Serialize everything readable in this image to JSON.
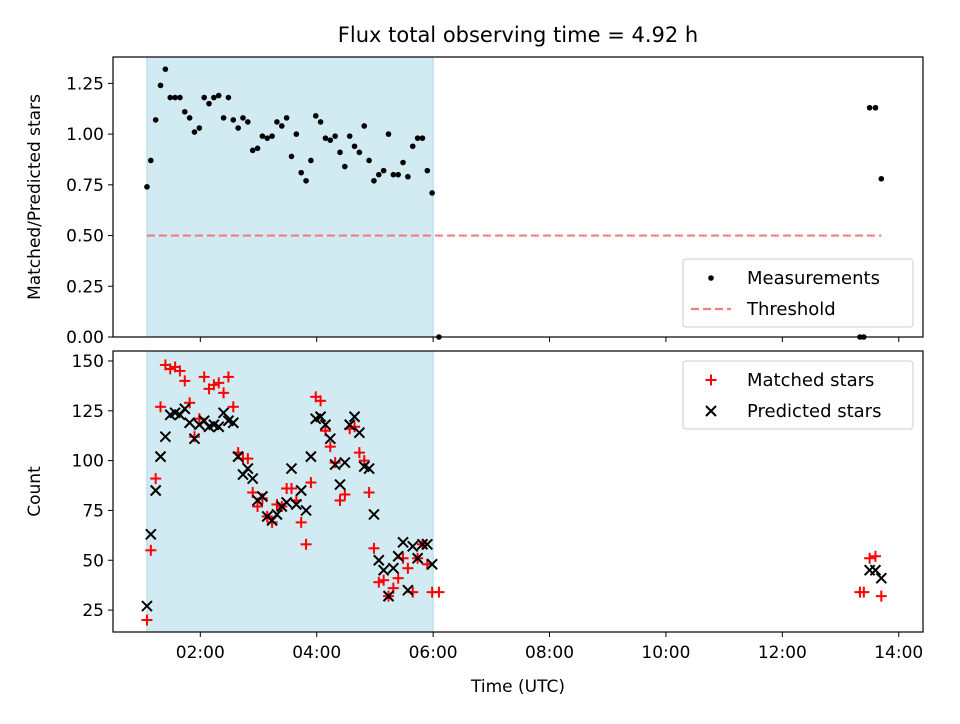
{
  "title": "Flux total observing time = 4.92 h",
  "chart_data": [
    {
      "type": "scatter",
      "ylabel": "Matched/Predicted stars",
      "xlim": [
        "00:30",
        "14:25"
      ],
      "ylim": [
        0,
        1.38
      ],
      "yticks": [
        "0.00",
        "0.25",
        "0.50",
        "0.75",
        "1.00",
        "1.25"
      ],
      "shaded_region": {
        "from": "01:05",
        "to": "06:00",
        "color": "#add8e6"
      },
      "grid": false,
      "legend_position": "lower-right",
      "legend": [
        "Measurements",
        "Threshold"
      ],
      "series": [
        {
          "name": "Measurements",
          "marker": "dot",
          "color": "#000000",
          "points": [
            [
              "01:05",
              0.74
            ],
            [
              "01:09",
              0.87
            ],
            [
              "01:14",
              1.07
            ],
            [
              "01:19",
              1.24
            ],
            [
              "01:24",
              1.32
            ],
            [
              "01:29",
              1.18
            ],
            [
              "01:34",
              1.18
            ],
            [
              "01:39",
              1.18
            ],
            [
              "01:44",
              1.11
            ],
            [
              "01:49",
              1.08
            ],
            [
              "01:54",
              1.01
            ],
            [
              "01:59",
              1.03
            ],
            [
              "02:04",
              1.18
            ],
            [
              "02:09",
              1.15
            ],
            [
              "02:14",
              1.18
            ],
            [
              "02:19",
              1.19
            ],
            [
              "02:24",
              1.08
            ],
            [
              "02:29",
              1.18
            ],
            [
              "02:34",
              1.07
            ],
            [
              "02:39",
              1.03
            ],
            [
              "02:44",
              1.08
            ],
            [
              "02:49",
              1.06
            ],
            [
              "02:54",
              0.92
            ],
            [
              "02:59",
              0.93
            ],
            [
              "03:04",
              0.99
            ],
            [
              "03:09",
              0.98
            ],
            [
              "03:14",
              0.99
            ],
            [
              "03:19",
              1.06
            ],
            [
              "03:24",
              1.04
            ],
            [
              "03:29",
              1.08
            ],
            [
              "03:34",
              0.89
            ],
            [
              "03:39",
              1.0
            ],
            [
              "03:44",
              0.81
            ],
            [
              "03:49",
              0.77
            ],
            [
              "03:54",
              0.87
            ],
            [
              "03:59",
              1.09
            ],
            [
              "04:04",
              1.06
            ],
            [
              "04:09",
              0.98
            ],
            [
              "04:14",
              0.97
            ],
            [
              "04:19",
              0.99
            ],
            [
              "04:24",
              0.91
            ],
            [
              "04:29",
              0.84
            ],
            [
              "04:34",
              0.99
            ],
            [
              "04:39",
              0.94
            ],
            [
              "04:44",
              0.91
            ],
            [
              "04:49",
              1.04
            ],
            [
              "04:54",
              0.87
            ],
            [
              "04:59",
              0.77
            ],
            [
              "05:04",
              0.8
            ],
            [
              "05:09",
              0.82
            ],
            [
              "05:14",
              1.0
            ],
            [
              "05:19",
              0.8
            ],
            [
              "05:24",
              0.8
            ],
            [
              "05:29",
              0.86
            ],
            [
              "05:34",
              0.79
            ],
            [
              "05:39",
              0.94
            ],
            [
              "05:44",
              0.98
            ],
            [
              "05:49",
              0.98
            ],
            [
              "05:54",
              0.82
            ],
            [
              "05:59",
              0.71
            ],
            [
              "06:06",
              0.0
            ],
            [
              "13:20",
              0.0
            ],
            [
              "13:24",
              0.0
            ],
            [
              "13:30",
              1.13
            ],
            [
              "13:36",
              1.13
            ],
            [
              "13:42",
              0.78
            ]
          ]
        },
        {
          "name": "Threshold",
          "marker": "dashed-line",
          "color": "#f08080",
          "points": [
            [
              "01:05",
              0.5
            ],
            [
              "13:42",
              0.5
            ]
          ]
        }
      ]
    },
    {
      "type": "scatter",
      "xlabel": "Time (UTC)",
      "ylabel": "Count",
      "xlim": [
        "00:30",
        "14:25"
      ],
      "ylim": [
        14,
        155
      ],
      "xticks": [
        "02:00",
        "04:00",
        "06:00",
        "08:00",
        "10:00",
        "12:00",
        "14:00"
      ],
      "yticks": [
        "25",
        "50",
        "75",
        "100",
        "125",
        "150"
      ],
      "shaded_region": {
        "from": "01:05",
        "to": "06:00",
        "color": "#add8e6"
      },
      "grid": false,
      "legend_position": "top-right",
      "legend": [
        "Matched stars",
        "Predicted stars"
      ],
      "series": [
        {
          "name": "Matched stars",
          "marker": "plus",
          "color": "#ff0000",
          "points": [
            [
              "01:05",
              20
            ],
            [
              "01:09",
              55
            ],
            [
              "01:14",
              91
            ],
            [
              "01:19",
              127
            ],
            [
              "01:24",
              148
            ],
            [
              "01:29",
              146
            ],
            [
              "01:34",
              147
            ],
            [
              "01:39",
              145
            ],
            [
              "01:44",
              140
            ],
            [
              "01:49",
              129
            ],
            [
              "01:54",
              112
            ],
            [
              "01:59",
              121
            ],
            [
              "02:04",
              142
            ],
            [
              "02:09",
              136
            ],
            [
              "02:14",
              138
            ],
            [
              "02:19",
              139
            ],
            [
              "02:24",
              134
            ],
            [
              "02:29",
              142
            ],
            [
              "02:34",
              127
            ],
            [
              "02:39",
              104
            ],
            [
              "02:44",
              101
            ],
            [
              "02:49",
              101
            ],
            [
              "02:54",
              84
            ],
            [
              "02:59",
              77
            ],
            [
              "03:04",
              81
            ],
            [
              "03:09",
              72
            ],
            [
              "03:14",
              69
            ],
            [
              "03:19",
              78
            ],
            [
              "03:24",
              77
            ],
            [
              "03:29",
              86
            ],
            [
              "03:34",
              86
            ],
            [
              "03:39",
              80
            ],
            [
              "03:44",
              69
            ],
            [
              "03:49",
              58
            ],
            [
              "03:54",
              89
            ],
            [
              "03:59",
              132
            ],
            [
              "04:04",
              130
            ],
            [
              "04:09",
              115
            ],
            [
              "04:14",
              107
            ],
            [
              "04:19",
              99
            ],
            [
              "04:24",
              80
            ],
            [
              "04:29",
              83
            ],
            [
              "04:34",
              116
            ],
            [
              "04:39",
              117
            ],
            [
              "04:44",
              104
            ],
            [
              "04:49",
              100
            ],
            [
              "04:54",
              84
            ],
            [
              "04:59",
              56
            ],
            [
              "05:04",
              39
            ],
            [
              "05:09",
              40
            ],
            [
              "05:14",
              32
            ],
            [
              "05:19",
              36
            ],
            [
              "05:24",
              41
            ],
            [
              "05:29",
              51
            ],
            [
              "05:34",
              46
            ],
            [
              "05:39",
              34
            ],
            [
              "05:44",
              51
            ],
            [
              "05:49",
              58
            ],
            [
              "05:54",
              48
            ],
            [
              "05:59",
              34
            ],
            [
              "06:06",
              34
            ],
            [
              "13:20",
              34
            ],
            [
              "13:24",
              34
            ],
            [
              "13:30",
              51
            ],
            [
              "13:36",
              52
            ],
            [
              "13:42",
              32
            ]
          ]
        },
        {
          "name": "Predicted stars",
          "marker": "x",
          "color": "#000000",
          "points": [
            [
              "01:05",
              27
            ],
            [
              "01:09",
              63
            ],
            [
              "01:14",
              85
            ],
            [
              "01:19",
              102
            ],
            [
              "01:24",
              112
            ],
            [
              "01:29",
              123
            ],
            [
              "01:34",
              124
            ],
            [
              "01:39",
              123
            ],
            [
              "01:44",
              126
            ],
            [
              "01:49",
              119
            ],
            [
              "01:54",
              111
            ],
            [
              "01:59",
              118
            ],
            [
              "02:04",
              120
            ],
            [
              "02:09",
              117
            ],
            [
              "02:14",
              118
            ],
            [
              "02:19",
              117
            ],
            [
              "02:24",
              124
            ],
            [
              "02:29",
              120
            ],
            [
              "02:34",
              119
            ],
            [
              "02:39",
              102
            ],
            [
              "02:44",
              93
            ],
            [
              "02:49",
              96
            ],
            [
              "02:54",
              91
            ],
            [
              "02:59",
              80
            ],
            [
              "03:04",
              82
            ],
            [
              "03:09",
              72
            ],
            [
              "03:14",
              70
            ],
            [
              "03:19",
              73
            ],
            [
              "03:24",
              77
            ],
            [
              "03:29",
              79
            ],
            [
              "03:34",
              96
            ],
            [
              "03:39",
              78
            ],
            [
              "03:44",
              85
            ],
            [
              "03:49",
              75
            ],
            [
              "03:54",
              102
            ],
            [
              "03:59",
              121
            ],
            [
              "04:04",
              122
            ],
            [
              "04:09",
              118
            ],
            [
              "04:14",
              111
            ],
            [
              "04:19",
              98
            ],
            [
              "04:24",
              88
            ],
            [
              "04:29",
              99
            ],
            [
              "04:34",
              118
            ],
            [
              "04:39",
              122
            ],
            [
              "04:44",
              114
            ],
            [
              "04:49",
              97
            ],
            [
              "04:54",
              96
            ],
            [
              "04:59",
              73
            ],
            [
              "05:04",
              50
            ],
            [
              "05:09",
              45
            ],
            [
              "05:14",
              32
            ],
            [
              "05:19",
              46
            ],
            [
              "05:24",
              52
            ],
            [
              "05:29",
              59
            ],
            [
              "05:34",
              35
            ],
            [
              "05:39",
              57
            ],
            [
              "05:44",
              51
            ],
            [
              "05:49",
              58
            ],
            [
              "05:54",
              58
            ],
            [
              "05:59",
              48
            ],
            [
              "13:30",
              45
            ],
            [
              "13:36",
              45
            ],
            [
              "13:42",
              41
            ]
          ]
        }
      ]
    }
  ]
}
